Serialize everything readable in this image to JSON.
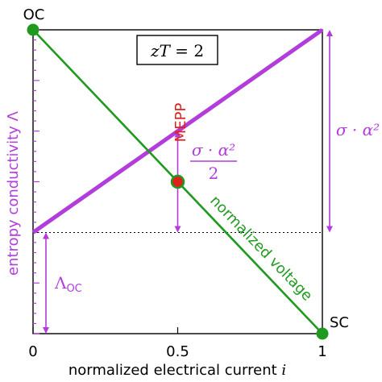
{
  "chart_data": {
    "type": "line",
    "xlabel": "normalized electrical current",
    "xlabel_var": "i",
    "ylabel": "entropy conductivity Λ",
    "xlim": [
      0,
      1
    ],
    "ylim": [
      0,
      1
    ],
    "x_ticks": [
      "0",
      "0.5",
      "1"
    ],
    "title_box": {
      "lhs": "zT",
      "eq": " = ",
      "rhs": "2"
    },
    "series": [
      {
        "name": "entropy conductivity Λ",
        "color": "#b23ddb",
        "x": [
          0,
          1
        ],
        "y": [
          0.333,
          1.0
        ]
      },
      {
        "name": "normalized voltage",
        "color": "#1f9a1f",
        "x": [
          0,
          1
        ],
        "y": [
          1.0,
          0.0
        ]
      }
    ],
    "baseline": {
      "y": 0.333
    },
    "points": [
      {
        "label": "OC",
        "x": 0,
        "y": 1.0,
        "color": "#1f9a1f"
      },
      {
        "label": "SC",
        "x": 1,
        "y": 0.0,
        "color": "#1f9a1f"
      },
      {
        "label": "MEPP",
        "x": 0.5,
        "y": 0.5,
        "color": "#e0201e",
        "ring": "#1f9a1f"
      }
    ],
    "annotations": {
      "sigma_alpha_sq": "σ · α²",
      "half_sigma_num": "σ · α²",
      "half_sigma_den": "2",
      "lambda_oc_main": "Λ",
      "lambda_oc_sub": "OC",
      "mepp_label": "MEPP",
      "voltage_label": "normalized voltage"
    },
    "colors": {
      "purple": "#b23ddb",
      "green": "#1f9a1f",
      "red": "#e0201e",
      "axis": "#000000"
    }
  }
}
